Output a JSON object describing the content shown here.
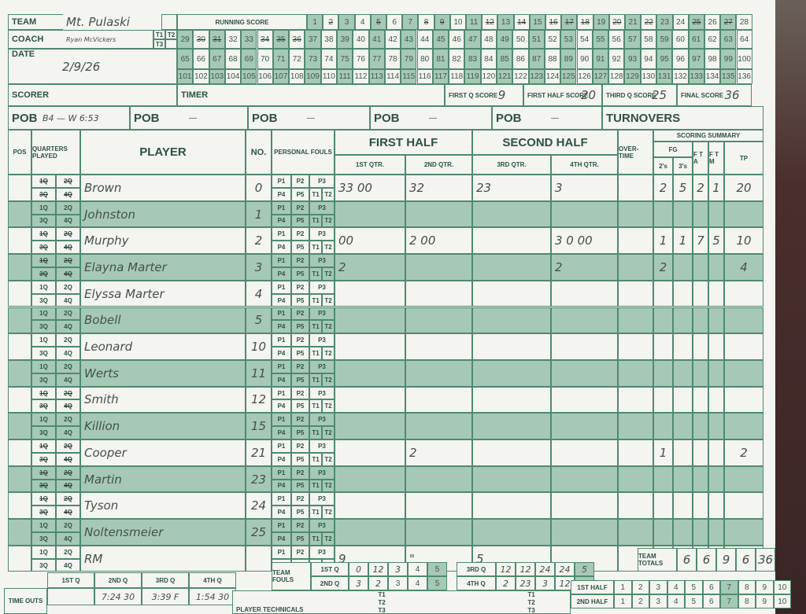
{
  "header": {
    "team_label": "TEAM",
    "team_value": "Mt. Pulaski",
    "coach_label": "COACH",
    "coach_value": "Ryan McVickers",
    "t1": "T1",
    "t2": "T2",
    "t3": "T3",
    "date_label": "DATE",
    "date_value": "2/9/26",
    "scorer_label": "SCORER",
    "timer_label": "TIMER",
    "running_score_label": "RUNNING SCORE",
    "running_score_max": 136,
    "running_score_marked": [
      2,
      5,
      8,
      9,
      12,
      14,
      16,
      17,
      18,
      20,
      22,
      25,
      27,
      30,
      31,
      34,
      35,
      36
    ],
    "first_q_label": "FIRST Q SCORE",
    "first_q_value": "9",
    "first_half_label": "FIRST HALF SCORE",
    "first_half_value": "20",
    "third_q_label": "THIRD Q SCORE",
    "third_q_value": "25",
    "final_label": "FINAL SCORE",
    "final_value": "36"
  },
  "pob": {
    "label": "POB",
    "first_value": "B4 — W 6:53",
    "dash": "—",
    "turnovers_label": "TURNOVERS"
  },
  "columns": {
    "pos": "POS",
    "quarters": "QUARTERS PLAYED",
    "player": "PLAYER",
    "no": "NO.",
    "fouls": "PERSONAL FOULS",
    "first_half": "FIRST HALF",
    "second_half": "SECOND HALF",
    "q1": "1ST QTR.",
    "q2": "2ND QTR.",
    "q3": "3RD QTR.",
    "q4": "4TH QTR.",
    "overtime": "OVER-TIME",
    "summary": "SCORING SUMMARY",
    "fg": "FG",
    "twos": "2's",
    "threes": "3's",
    "fta": "F T A",
    "ftm": "F T M",
    "tp": "TP"
  },
  "foul_labels_top": [
    "P1",
    "P2",
    "P3"
  ],
  "foul_labels_bottom": [
    "P4",
    "P5",
    "T1",
    "T2"
  ],
  "quarter_labels": [
    "1Q",
    "2Q",
    "3Q",
    "4Q"
  ],
  "players": [
    {
      "name": "Brown",
      "no": "0",
      "played": true,
      "q1": "33 00",
      "q2": "32",
      "q3": "23",
      "q4": "3",
      "ot": "",
      "twos": "2",
      "threes": "5",
      "fta": "2",
      "ftm": "1",
      "tp": "20"
    },
    {
      "name": "Johnston",
      "no": "1",
      "played": false,
      "q1": "",
      "q2": "",
      "q3": "",
      "q4": "",
      "ot": "",
      "twos": "",
      "threes": "",
      "fta": "",
      "ftm": "",
      "tp": ""
    },
    {
      "name": "Murphy",
      "no": "2",
      "played": true,
      "q1": "00",
      "q2": "2 00",
      "q3": "",
      "q4": "3 0 00",
      "ot": "",
      "twos": "1",
      "threes": "1",
      "fta": "7",
      "ftm": "5",
      "tp": "10"
    },
    {
      "name": "Elayna Marter",
      "no": "3",
      "played": true,
      "q1": "2",
      "q2": "",
      "q3": "",
      "q4": "2",
      "ot": "",
      "twos": "2",
      "threes": "",
      "fta": "",
      "ftm": "",
      "tp": "4"
    },
    {
      "name": "Elyssa Marter",
      "no": "4",
      "played": false,
      "q1": "",
      "q2": "",
      "q3": "",
      "q4": "",
      "ot": "",
      "twos": "",
      "threes": "",
      "fta": "",
      "ftm": "",
      "tp": ""
    },
    {
      "name": "Bobell",
      "no": "5",
      "played": false,
      "q1": "",
      "q2": "",
      "q3": "",
      "q4": "",
      "ot": "",
      "twos": "",
      "threes": "",
      "fta": "",
      "ftm": "",
      "tp": ""
    },
    {
      "name": "Leonard",
      "no": "10",
      "played": false,
      "q1": "",
      "q2": "",
      "q3": "",
      "q4": "",
      "ot": "",
      "twos": "",
      "threes": "",
      "fta": "",
      "ftm": "",
      "tp": ""
    },
    {
      "name": "Werts",
      "no": "11",
      "played": false,
      "q1": "",
      "q2": "",
      "q3": "",
      "q4": "",
      "ot": "",
      "twos": "",
      "threes": "",
      "fta": "",
      "ftm": "",
      "tp": ""
    },
    {
      "name": "Smith",
      "no": "12",
      "played": true,
      "q1": "",
      "q2": "",
      "q3": "",
      "q4": "",
      "ot": "",
      "twos": "",
      "threes": "",
      "fta": "",
      "ftm": "",
      "tp": ""
    },
    {
      "name": "Killion",
      "no": "15",
      "played": false,
      "q1": "",
      "q2": "",
      "q3": "",
      "q4": "",
      "ot": "",
      "twos": "",
      "threes": "",
      "fta": "",
      "ftm": "",
      "tp": ""
    },
    {
      "name": "Cooper",
      "no": "21",
      "played": true,
      "q1": "",
      "q2": "2",
      "q3": "",
      "q4": "",
      "ot": "",
      "twos": "1",
      "threes": "",
      "fta": "",
      "ftm": "",
      "tp": "2"
    },
    {
      "name": "Martin",
      "no": "23",
      "played": true,
      "q1": "",
      "q2": "",
      "q3": "",
      "q4": "",
      "ot": "",
      "twos": "",
      "threes": "",
      "fta": "",
      "ftm": "",
      "tp": ""
    },
    {
      "name": "Tyson",
      "no": "24",
      "played": true,
      "q1": "",
      "q2": "",
      "q3": "",
      "q4": "",
      "ot": "",
      "twos": "",
      "threes": "",
      "fta": "",
      "ftm": "",
      "tp": ""
    },
    {
      "name": "Noltensmeier",
      "no": "25",
      "played": false,
      "q1": "",
      "q2": "",
      "q3": "",
      "q4": "",
      "ot": "",
      "twos": "",
      "threes": "",
      "fta": "",
      "ftm": "",
      "tp": ""
    },
    {
      "name": "RM",
      "no": "",
      "played": false,
      "q1": "9",
      "q2": "\"",
      "q3": "5",
      "q4": "",
      "ot": "",
      "twos": "",
      "threes": "",
      "fta": "",
      "ftm": "",
      "tp": ""
    }
  ],
  "team_totals": {
    "label": "TEAM TOTALS",
    "twos": "6",
    "threes": "6",
    "fta": "9",
    "ftm": "6",
    "tp": "36"
  },
  "team_fouls": {
    "label": "TEAM FOULS",
    "q1_label": "1ST Q",
    "q2_label": "2ND Q",
    "q3_label": "3RD Q",
    "q4_label": "4TH Q",
    "boxes": [
      "1",
      "2",
      "3",
      "4",
      "5"
    ],
    "q1_marks": [
      "0",
      "12",
      "3",
      "",
      ""
    ],
    "q2_marks": [
      "3",
      "2",
      "",
      "",
      ""
    ],
    "q3_marks": [
      "12",
      "12",
      "24",
      "24",
      "5"
    ],
    "q4_marks": [
      "2",
      "23",
      "3",
      "12",
      "24"
    ]
  },
  "timeouts": {
    "label": "TIME OUTS",
    "headers": [
      "1ST Q",
      "2ND Q",
      "3RD Q",
      "4TH Q"
    ],
    "values": [
      "",
      "7:24 30",
      "3:39 F",
      "1:54 30"
    ],
    "first_half_label": "1ST HALF",
    "second_half_label": "2ND HALF",
    "boxes": [
      "1",
      "2",
      "3",
      "4",
      "5",
      "6",
      "7",
      "8",
      "9",
      "10"
    ]
  },
  "technicals": {
    "label": "PLAYER TECHNICALS",
    "t": [
      "T1",
      "T2",
      "T3"
    ]
  },
  "colors": {
    "green_shade": "#a6c9b7",
    "line": "#4f8a6d",
    "paper": "#f4f4f1"
  }
}
